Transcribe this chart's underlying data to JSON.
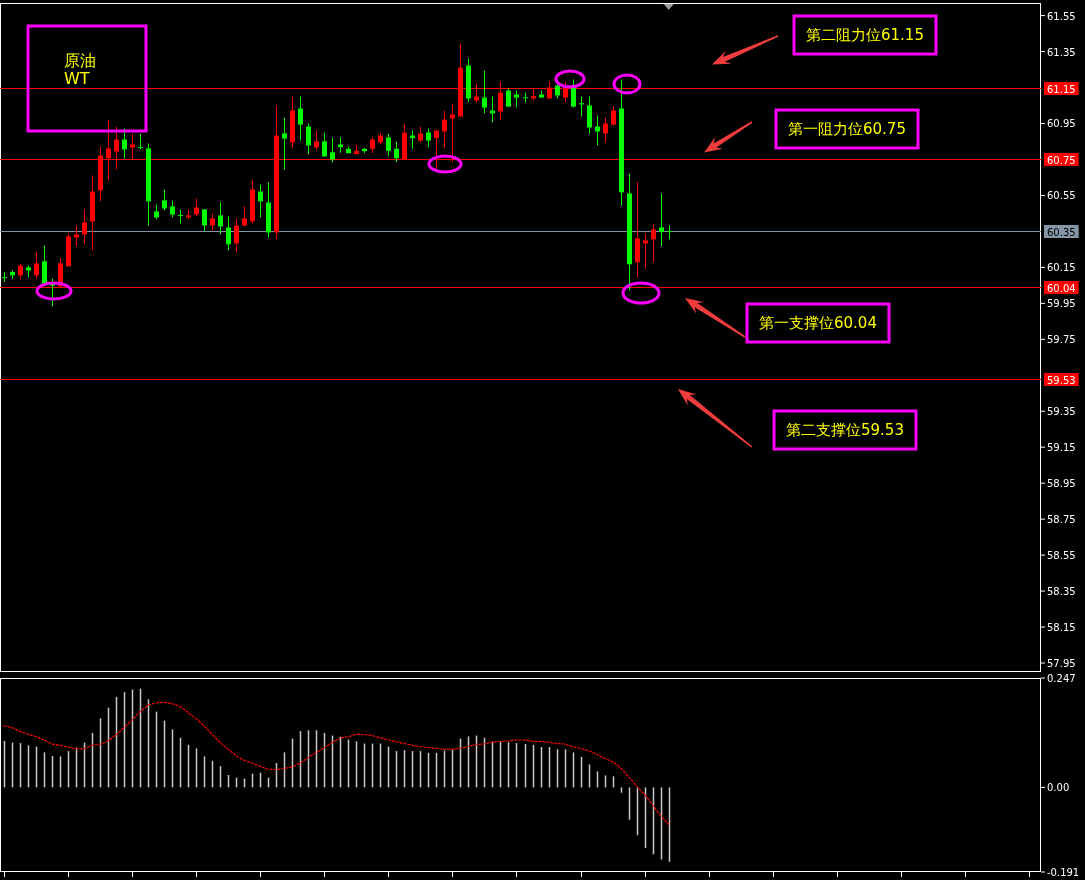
{
  "chart_data": [
    {
      "type": "candlestick",
      "title": "原油",
      "subtitle": "WT",
      "categories": [
        null,
        null,
        null,
        null,
        null,
        null,
        null,
        null,
        null,
        null,
        null,
        null,
        null,
        null,
        null,
        null,
        null,
        null,
        null,
        null,
        null,
        null,
        null,
        null,
        null,
        null,
        null,
        null,
        null,
        null,
        null,
        null,
        null,
        null,
        null,
        null,
        null,
        null,
        null,
        null,
        null,
        null,
        null,
        null,
        null,
        null,
        null,
        null,
        null,
        null,
        null,
        null,
        null,
        null,
        null,
        null,
        null,
        null,
        null,
        null,
        null,
        null,
        null,
        null,
        null,
        null,
        null,
        null,
        null,
        null,
        null,
        null,
        null,
        null,
        null,
        null,
        null,
        null,
        null,
        null,
        null,
        null,
        null,
        null,
        null,
        null,
        null,
        null,
        null,
        null,
        null,
        null,
        null,
        null,
        null,
        null,
        null,
        null,
        null,
        null,
        null,
        null,
        null,
        null,
        null,
        null,
        null,
        null,
        null,
        null,
        null,
        null,
        null,
        null,
        null,
        null,
        null,
        null,
        null,
        null,
        null,
        null,
        null,
        null,
        null,
        null,
        null,
        null,
        null,
        null
      ],
      "ohlc": [
        [
          60.096,
          60.124,
          60.069,
          60.094
        ],
        [
          60.124,
          60.133,
          60.087,
          60.106
        ],
        [
          60.106,
          60.17,
          60.083,
          60.161
        ],
        [
          60.15,
          60.161,
          60.096,
          60.133
        ],
        [
          60.106,
          60.233,
          60.087,
          60.172
        ],
        [
          60.183,
          60.272,
          60.05,
          60.059
        ],
        [
          60.059,
          60.087,
          59.933,
          60.048
        ],
        [
          60.044,
          60.2,
          60.037,
          60.172
        ],
        [
          60.156,
          60.337,
          60.156,
          60.322
        ],
        [
          60.317,
          60.383,
          60.267,
          60.333
        ],
        [
          60.333,
          60.472,
          60.281,
          60.4
        ],
        [
          60.406,
          60.661,
          60.244,
          60.572
        ],
        [
          60.578,
          60.822,
          60.517,
          60.772
        ],
        [
          60.756,
          60.972,
          60.633,
          60.811
        ],
        [
          60.794,
          60.933,
          60.694,
          60.861
        ],
        [
          60.861,
          60.922,
          60.756,
          60.806
        ],
        [
          60.817,
          60.893,
          60.75,
          60.833
        ],
        [
          60.819,
          60.893,
          60.806,
          60.815
        ],
        [
          60.811,
          60.839,
          60.383,
          60.517
        ],
        [
          60.461,
          60.5,
          60.417,
          60.428
        ],
        [
          60.522,
          60.583,
          60.467,
          60.478
        ],
        [
          60.489,
          60.522,
          60.428,
          60.444
        ],
        [
          60.441,
          60.472,
          60.394,
          60.437
        ],
        [
          60.428,
          60.472,
          60.417,
          60.439
        ],
        [
          60.444,
          60.533,
          60.433,
          60.483
        ],
        [
          60.472,
          60.472,
          60.35,
          60.383
        ],
        [
          60.383,
          60.45,
          60.356,
          60.422
        ],
        [
          60.439,
          60.511,
          60.333,
          60.378
        ],
        [
          60.372,
          60.433,
          60.244,
          60.278
        ],
        [
          60.283,
          60.422,
          60.233,
          60.383
        ],
        [
          60.383,
          60.489,
          60.378,
          60.422
        ],
        [
          60.406,
          60.633,
          60.394,
          60.583
        ],
        [
          60.572,
          60.611,
          60.428,
          60.517
        ],
        [
          60.511,
          60.622,
          60.317,
          60.344
        ],
        [
          60.344,
          61.05,
          60.306,
          60.883
        ],
        [
          60.894,
          60.983,
          60.694,
          60.867
        ],
        [
          60.844,
          61.1,
          60.817,
          61.022
        ],
        [
          61.033,
          61.1,
          60.856,
          60.944
        ],
        [
          60.933,
          60.95,
          60.778,
          60.828
        ],
        [
          60.817,
          60.911,
          60.806,
          60.85
        ],
        [
          60.85,
          60.9,
          60.767,
          60.767
        ],
        [
          60.79,
          60.872,
          60.733,
          60.75
        ],
        [
          60.833,
          60.874,
          60.787,
          60.819
        ],
        [
          60.809,
          60.822,
          60.785,
          60.785
        ],
        [
          60.78,
          60.833,
          60.78,
          60.798
        ],
        [
          60.809,
          60.813,
          60.785,
          60.796
        ],
        [
          60.809,
          60.874,
          60.785,
          60.861
        ],
        [
          60.844,
          60.898,
          60.833,
          60.883
        ],
        [
          60.872,
          60.893,
          60.768,
          60.798
        ],
        [
          60.809,
          60.85,
          60.735,
          60.757
        ],
        [
          60.75,
          60.944,
          60.75,
          60.898
        ],
        [
          60.883,
          60.911,
          60.809,
          60.869
        ],
        [
          60.855,
          60.933,
          60.846,
          60.894
        ],
        [
          60.9,
          60.922,
          60.818,
          60.855
        ],
        [
          60.869,
          60.911,
          60.698,
          60.911
        ],
        [
          60.906,
          61.022,
          60.817,
          60.972
        ],
        [
          60.978,
          61.061,
          60.735,
          61.0
        ],
        [
          60.989,
          61.394,
          60.989,
          61.261
        ],
        [
          61.272,
          61.311,
          61.069,
          61.089
        ],
        [
          61.078,
          61.172,
          61.067,
          61.1
        ],
        [
          61.094,
          61.244,
          61.006,
          61.039
        ],
        [
          61.022,
          61.1,
          60.956,
          61.006
        ],
        [
          61.017,
          61.183,
          60.967,
          61.122
        ],
        [
          61.133,
          61.144,
          61.044,
          61.044
        ],
        [
          61.111,
          61.133,
          61.039,
          61.094
        ],
        [
          61.096,
          61.122,
          61.067,
          61.091
        ],
        [
          61.089,
          61.144,
          61.078,
          61.102
        ],
        [
          61.111,
          61.133,
          61.094,
          61.094
        ],
        [
          61.089,
          61.183,
          61.089,
          61.15
        ],
        [
          61.161,
          61.183,
          61.089,
          61.106
        ],
        [
          61.094,
          61.183,
          61.067,
          61.15
        ],
        [
          61.15,
          61.194,
          61.039,
          61.044
        ],
        [
          61.063,
          61.1,
          60.989,
          61.056
        ],
        [
          61.05,
          61.1,
          60.894,
          60.928
        ],
        [
          60.933,
          60.994,
          60.828,
          60.906
        ],
        [
          60.894,
          60.983,
          60.844,
          60.95
        ],
        [
          60.944,
          61.044,
          60.939,
          61.022
        ],
        [
          61.033,
          61.194,
          60.494,
          60.567
        ],
        [
          60.561,
          60.672,
          60.022,
          60.167
        ],
        [
          60.178,
          60.622,
          60.094,
          60.311
        ],
        [
          60.283,
          60.339,
          60.144,
          60.3
        ],
        [
          60.306,
          60.389,
          60.178,
          60.361
        ],
        [
          60.372,
          60.561,
          60.267,
          60.346
        ],
        [
          60.352,
          60.383,
          60.306,
          60.35
        ],
        null,
        null,
        null,
        null,
        null,
        null,
        null,
        null,
        null,
        null,
        null,
        null,
        null,
        null,
        null,
        null,
        null,
        null,
        null,
        null,
        null,
        null,
        null,
        null,
        null,
        null,
        null,
        null,
        null,
        null,
        null,
        null,
        null,
        null,
        null,
        null,
        null,
        null,
        null,
        null,
        null,
        null,
        null,
        null,
        null,
        null
      ],
      "colors": [
        "#00ff00",
        "#00ff00",
        "#ff0000",
        "#00ff00",
        "#ff0000",
        "#00ff00",
        "#00ff00",
        "#ff0000",
        "#ff0000",
        "#ff0000",
        "#ff0000",
        "#ff0000",
        "#ff0000",
        "#ff0000",
        "#ff0000",
        "#00ff00",
        "#ff0000",
        "#00ff00",
        "#00ff00",
        "#00ff00",
        "#00ff00",
        "#00ff00",
        "#00ff00",
        "#ff0000",
        "#ff0000",
        "#00ff00",
        "#ff0000",
        "#00ff00",
        "#00ff00",
        "#ff0000",
        "#ff0000",
        "#ff0000",
        "#00ff00",
        "#00ff00",
        "#ff0000",
        "#00ff00",
        "#ff0000",
        "#00ff00",
        "#00ff00",
        "#ff0000",
        "#00ff00",
        "#00ff00",
        "#00ff00",
        "#00ff00",
        "#ff0000",
        "#00ff00",
        "#ff0000",
        "#ff0000",
        "#00ff00",
        "#00ff00",
        "#ff0000",
        "#00ff00",
        "#ff0000",
        "#00ff00",
        "#ff0000",
        "#ff0000",
        "#ff0000",
        "#ff0000",
        "#00ff00",
        "#ff0000",
        "#00ff00",
        "#00ff00",
        "#ff0000",
        "#00ff00",
        "#00ff00",
        "#00ff00",
        "#ff0000",
        "#00ff00",
        "#ff0000",
        "#00ff00",
        "#ff0000",
        "#00ff00",
        "#00ff00",
        "#00ff00",
        "#00ff00",
        "#ff0000",
        "#ff0000",
        "#00ff00",
        "#00ff00",
        "#ff0000",
        "#ff0000",
        "#ff0000",
        "#00ff00",
        "#00ff00",
        null,
        null,
        null,
        null,
        null,
        null,
        null,
        null,
        null,
        null,
        null,
        null,
        null,
        null,
        null,
        null,
        null,
        null,
        null,
        null,
        null,
        null,
        null,
        null,
        null,
        null,
        null,
        null,
        null,
        null,
        null,
        null,
        null,
        null,
        null,
        null,
        null,
        null,
        null,
        null,
        null,
        null,
        null,
        null,
        null,
        null
      ],
      "ylim": [
        57.9,
        61.62
      ],
      "yticks": [
        57.95,
        58.15,
        58.35,
        58.55,
        58.75,
        58.95,
        59.15,
        59.35,
        59.75,
        59.95,
        60.15,
        60.55,
        60.95,
        61.35,
        61.55
      ],
      "tick_labels": "y",
      "ref_lines": [
        {
          "axis": "y",
          "value": 61.15,
          "label": "61.15",
          "color": "#ff0000"
        },
        {
          "axis": "y",
          "value": 60.75,
          "label": "60.75",
          "color": "#ff0000"
        },
        {
          "axis": "y",
          "value": 60.35,
          "label": "60.35",
          "color": "#8495a6"
        },
        {
          "axis": "y",
          "value": 60.04,
          "label": "60.04",
          "color": "#ff0000"
        },
        {
          "axis": "y",
          "value": 59.53,
          "label": "59.53",
          "color": "#ff0000"
        }
      ],
      "annotations": [
        {
          "text": "第二阻力位61.15",
          "y": 61.15
        },
        {
          "text": "第一阻力位60.75",
          "y": 60.75
        },
        {
          "text": "第一支撑位60.04",
          "y": 60.04
        },
        {
          "text": "第二支撑位59.53",
          "y": 59.53
        }
      ]
    },
    {
      "type": "bar",
      "categories": [
        null,
        null,
        null,
        null,
        null,
        null,
        null,
        null,
        null,
        null,
        null,
        null,
        null,
        null,
        null,
        null,
        null,
        null,
        null,
        null,
        null,
        null,
        null,
        null,
        null,
        null,
        null,
        null,
        null,
        null,
        null,
        null,
        null,
        null,
        null,
        null,
        null,
        null,
        null,
        null,
        null,
        null,
        null,
        null,
        null,
        null,
        null,
        null,
        null,
        null,
        null,
        null,
        null,
        null,
        null,
        null,
        null,
        null,
        null,
        null,
        null,
        null,
        null,
        null,
        null,
        null,
        null,
        null,
        null,
        null,
        null,
        null,
        null,
        null,
        null,
        null,
        null,
        null,
        null,
        null,
        null,
        null,
        null,
        null,
        null,
        null,
        null,
        null,
        null,
        null,
        null,
        null,
        null,
        null,
        null,
        null,
        null,
        null,
        null,
        null,
        null,
        null,
        null,
        null,
        null,
        null,
        null,
        null,
        null,
        null,
        null,
        null,
        null,
        null,
        null,
        null,
        null,
        null,
        null,
        null,
        null,
        null,
        null,
        null,
        null,
        null,
        null,
        null,
        null,
        null
      ],
      "series": [
        {
          "type": "bar",
          "color": "#c8c8c8",
          "values": [
            0.105,
            0.101,
            0.1,
            0.095,
            0.092,
            0.079,
            0.071,
            0.07,
            0.082,
            0.09,
            0.101,
            0.123,
            0.156,
            0.18,
            0.204,
            0.215,
            0.221,
            0.223,
            0.199,
            0.171,
            0.151,
            0.131,
            0.112,
            0.096,
            0.088,
            0.07,
            0.06,
            0.048,
            0.028,
            0.022,
            0.02,
            0.031,
            0.033,
            0.022,
            0.055,
            0.079,
            0.11,
            0.127,
            0.129,
            0.129,
            0.123,
            0.117,
            0.114,
            0.108,
            0.104,
            0.099,
            0.099,
            0.099,
            0.092,
            0.082,
            0.084,
            0.082,
            0.082,
            0.078,
            0.078,
            0.083,
            0.085,
            0.11,
            0.115,
            0.117,
            0.112,
            0.104,
            0.104,
            0.102,
            0.1,
            0.098,
            0.096,
            0.091,
            0.091,
            0.086,
            0.086,
            0.079,
            0.069,
            0.052,
            0.036,
            0.027,
            0.025,
            -0.012,
            -0.073,
            -0.108,
            -0.137,
            -0.151,
            -0.163,
            -0.168,
            null,
            null,
            null,
            null,
            null,
            null,
            null,
            null,
            null,
            null,
            null,
            null,
            null,
            null,
            null,
            null,
            null,
            null,
            null,
            null,
            null,
            null,
            null,
            null,
            null,
            null,
            null,
            null,
            null,
            null,
            null,
            null,
            null,
            null,
            null,
            null,
            null,
            null,
            null,
            null,
            null,
            null,
            null,
            null,
            null,
            null
          ]
        },
        {
          "type": "line",
          "color": "#ff0000",
          "line_style": "dotted",
          "values": [
            0.139,
            0.135,
            0.126,
            0.12,
            0.115,
            0.107,
            0.098,
            0.095,
            0.091,
            0.087,
            0.087,
            0.095,
            0.097,
            0.105,
            0.119,
            0.135,
            0.152,
            0.171,
            0.186,
            0.191,
            0.192,
            0.189,
            0.183,
            0.169,
            0.155,
            0.139,
            0.119,
            0.101,
            0.086,
            0.071,
            0.061,
            0.055,
            0.047,
            0.041,
            0.04,
            0.043,
            0.046,
            0.055,
            0.067,
            0.079,
            0.09,
            0.101,
            0.112,
            0.114,
            0.12,
            0.119,
            0.117,
            0.112,
            0.107,
            0.103,
            0.099,
            0.095,
            0.092,
            0.09,
            0.088,
            0.086,
            0.086,
            0.088,
            0.093,
            0.097,
            0.098,
            0.102,
            0.104,
            0.105,
            0.107,
            0.107,
            0.104,
            0.104,
            0.102,
            0.099,
            0.098,
            0.092,
            0.088,
            0.083,
            0.075,
            0.066,
            0.058,
            0.044,
            0.024,
            0.003,
            -0.016,
            -0.04,
            -0.064,
            -0.083,
            null,
            null,
            null,
            null,
            null,
            null,
            null,
            null,
            null,
            null,
            null,
            null,
            null,
            null,
            null,
            null,
            null,
            null,
            null,
            null,
            null,
            null,
            null,
            null,
            null,
            null,
            null,
            null,
            null,
            null,
            null,
            null,
            null,
            null,
            null,
            null,
            null,
            null,
            null,
            null,
            null,
            null,
            null,
            null,
            null,
            null
          ]
        }
      ],
      "ylim": [
        -0.191,
        0.247
      ],
      "yticks": [
        0.247,
        {
          "value": 0,
          "label": "0.00"
        },
        -0.191
      ],
      "tick_labels": "y"
    }
  ]
}
